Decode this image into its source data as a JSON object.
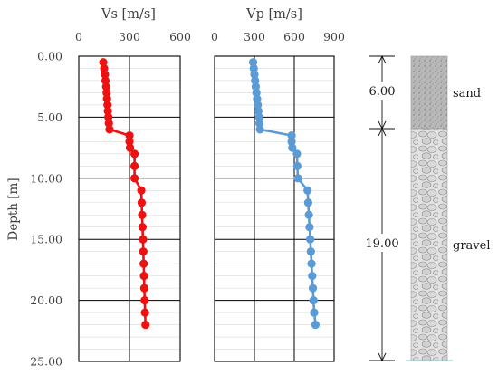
{
  "chart_data": [
    {
      "type": "line",
      "title": "Vs [m/s]",
      "ylabel": "Depth [m]",
      "x_axis_position": "top",
      "y_inverted": true,
      "xlim": [
        0,
        600
      ],
      "ylim": [
        0,
        25
      ],
      "grid": true,
      "x_ticks": [
        "0",
        "300",
        "600"
      ],
      "y_ticks": [
        "0.00",
        "5.00",
        "10.00",
        "15.00",
        "20.00",
        "25.00"
      ],
      "color": "#ee1111",
      "series": [
        {
          "points": [
            {
              "depth": 0.5,
              "v": 145
            },
            {
              "depth": 1.0,
              "v": 150
            },
            {
              "depth": 1.5,
              "v": 155
            },
            {
              "depth": 2.0,
              "v": 158
            },
            {
              "depth": 2.5,
              "v": 162
            },
            {
              "depth": 3.0,
              "v": 165
            },
            {
              "depth": 3.5,
              "v": 167
            },
            {
              "depth": 4.0,
              "v": 170
            },
            {
              "depth": 4.5,
              "v": 172
            },
            {
              "depth": 5.0,
              "v": 175
            },
            {
              "depth": 5.5,
              "v": 178
            },
            {
              "depth": 6.0,
              "v": 182
            },
            {
              "depth": 6.5,
              "v": 300
            },
            {
              "depth": 7.0,
              "v": 300
            },
            {
              "depth": 7.5,
              "v": 303
            },
            {
              "depth": 8.0,
              "v": 330
            },
            {
              "depth": 9.0,
              "v": 330
            },
            {
              "depth": 10.0,
              "v": 330
            },
            {
              "depth": 11.0,
              "v": 370
            },
            {
              "depth": 12.0,
              "v": 372
            },
            {
              "depth": 13.0,
              "v": 375
            },
            {
              "depth": 14.0,
              "v": 377
            },
            {
              "depth": 15.0,
              "v": 380
            },
            {
              "depth": 16.0,
              "v": 382
            },
            {
              "depth": 17.0,
              "v": 384
            },
            {
              "depth": 18.0,
              "v": 386
            },
            {
              "depth": 19.0,
              "v": 388
            },
            {
              "depth": 20.0,
              "v": 390
            },
            {
              "depth": 21.0,
              "v": 392
            },
            {
              "depth": 22.0,
              "v": 395
            }
          ]
        }
      ]
    },
    {
      "type": "line",
      "title": "Vp [m/s]",
      "x_axis_position": "top",
      "y_inverted": true,
      "xlim": [
        0,
        900
      ],
      "ylim": [
        0,
        25
      ],
      "grid": true,
      "x_ticks": [
        "0",
        "300",
        "600",
        "900"
      ],
      "color": "#5b9bd5",
      "series": [
        {
          "points": [
            {
              "depth": 0.5,
              "v": 290
            },
            {
              "depth": 1.0,
              "v": 295
            },
            {
              "depth": 1.5,
              "v": 300
            },
            {
              "depth": 2.0,
              "v": 305
            },
            {
              "depth": 2.5,
              "v": 310
            },
            {
              "depth": 3.0,
              "v": 315
            },
            {
              "depth": 3.5,
              "v": 320
            },
            {
              "depth": 4.0,
              "v": 325
            },
            {
              "depth": 4.5,
              "v": 330
            },
            {
              "depth": 5.0,
              "v": 335
            },
            {
              "depth": 5.5,
              "v": 338
            },
            {
              "depth": 6.0,
              "v": 342
            },
            {
              "depth": 6.5,
              "v": 580
            },
            {
              "depth": 7.0,
              "v": 580
            },
            {
              "depth": 7.5,
              "v": 585
            },
            {
              "depth": 8.0,
              "v": 620
            },
            {
              "depth": 9.0,
              "v": 623
            },
            {
              "depth": 10.0,
              "v": 627
            },
            {
              "depth": 11.0,
              "v": 700
            },
            {
              "depth": 12.0,
              "v": 705
            },
            {
              "depth": 13.0,
              "v": 710
            },
            {
              "depth": 14.0,
              "v": 715
            },
            {
              "depth": 15.0,
              "v": 720
            },
            {
              "depth": 16.0,
              "v": 725
            },
            {
              "depth": 17.0,
              "v": 730
            },
            {
              "depth": 18.0,
              "v": 735
            },
            {
              "depth": 19.0,
              "v": 740
            },
            {
              "depth": 20.0,
              "v": 745
            },
            {
              "depth": 21.0,
              "v": 750
            },
            {
              "depth": 22.0,
              "v": 760
            }
          ]
        }
      ]
    }
  ],
  "stratigraphy": {
    "layers": [
      {
        "name": "sand",
        "thickness_label": "6.00",
        "top": 0,
        "bottom": 6,
        "fill": "#b8b8b8"
      },
      {
        "name": "gravel",
        "thickness_label": "19.00",
        "top": 6,
        "bottom": 25,
        "fill": "#e0e0e0"
      }
    ]
  }
}
